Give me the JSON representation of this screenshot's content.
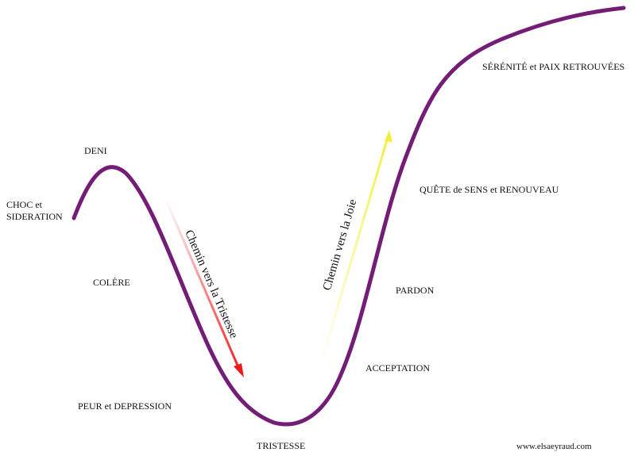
{
  "stages": [
    {
      "lines": [
        "CHOC et",
        "SIDERATION"
      ]
    },
    {
      "lines": [
        "DENI"
      ]
    },
    {
      "lines": [
        "COLÈRE"
      ]
    },
    {
      "lines": [
        "PEUR et DEPRESSION"
      ]
    },
    {
      "lines": [
        "TRISTESSE"
      ]
    },
    {
      "lines": [
        "ACCEPTATION"
      ]
    },
    {
      "lines": [
        "PARDON"
      ]
    },
    {
      "lines": [
        "QUÊTE de SENS et RENOUVEAU"
      ]
    },
    {
      "lines": [
        "SÉRÉNITÉ et PAIX RETROUVÉES"
      ]
    }
  ],
  "arrows": [
    {
      "label": "Chemin vers la Tristesse"
    },
    {
      "label": "Chemin vers la Joie"
    }
  ],
  "footer": "www.elsaeyraud.com"
}
